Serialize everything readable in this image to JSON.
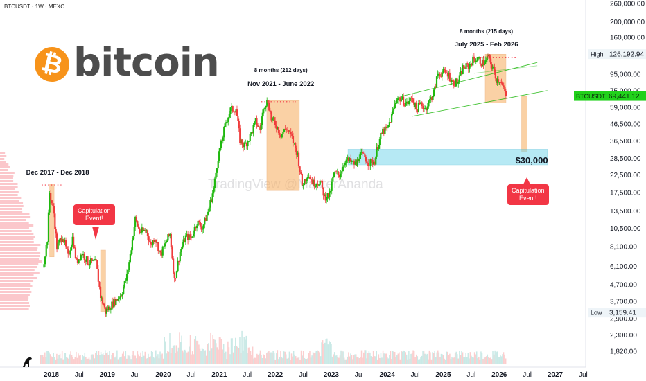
{
  "header": {
    "symbol_line": "BTCUSDT · 1W · MEXC"
  },
  "logo": {
    "symbol": "₿",
    "word": "bitcoin"
  },
  "watermark": "TradingView @MasterAnanda",
  "colors": {
    "up": "#26a69a",
    "up_bright": "#1fb80e",
    "down": "#ef3b3b",
    "zone": "#f7b36b",
    "support": "#6fd4ea",
    "label_red": "#f23645",
    "price_tag": "#21d11b"
  },
  "annotations": {
    "cycle1_title": "Dec 2017 - Dec 2018",
    "cycle2_duration": "8 months (212 days)",
    "cycle2_title": "Nov 2021 - June 2022",
    "cycle3_duration": "8 months (215 days)",
    "cycle3_title": "July 2025 - Feb 2026",
    "capitulation_1": [
      "Capitulation",
      "Event!"
    ],
    "capitulation_2": [
      "Capitulation",
      "Event!"
    ],
    "target_label": "$30,000"
  },
  "price_tags": {
    "high_label": "High",
    "high_value": "126,192.94",
    "current_label": "BTCUSDT",
    "current_value": "69,441.12",
    "low_label": "Low",
    "low_value": "3,159.41"
  },
  "chart_data": {
    "type": "candlestick",
    "scale": "log",
    "y_ticks": [
      "260,000.00",
      "200,000.00",
      "160,000.00",
      "126,192.94",
      "95,000.00",
      "75,000.00",
      "59,000.00",
      "46,500.00",
      "36,500.00",
      "28,500.00",
      "22,500.00",
      "17,500.00",
      "13,500.00",
      "10,500.00",
      "8,100.00",
      "6,100.00",
      "4,700.00",
      "3,700.00",
      "2,900.00",
      "2,300.00",
      "1,820.00"
    ],
    "y_tick_values": [
      260000,
      200000,
      160000,
      126192.94,
      95000,
      75000,
      59000,
      46500,
      36500,
      28500,
      22500,
      17500,
      13500,
      10500,
      8100,
      6100,
      4700,
      3700,
      2900,
      2300,
      1820
    ],
    "x_ticks": [
      "2018",
      "Jul",
      "2019",
      "Jul",
      "2020",
      "Jul",
      "2021",
      "Jul",
      "2022",
      "Jul",
      "2023",
      "Jul",
      "2024",
      "Jul",
      "2025",
      "Jul",
      "2026",
      "Jul",
      "2027",
      "Jul"
    ],
    "x_tick_dates": [
      2018.0,
      2018.5,
      2019.0,
      2019.5,
      2020.0,
      2020.5,
      2021.0,
      2021.5,
      2022.0,
      2022.5,
      2023.0,
      2023.5,
      2024.0,
      2024.5,
      2025.0,
      2025.5,
      2026.0,
      2026.5,
      2027.0,
      2027.5
    ],
    "price_path": [
      [
        2017.85,
        6000
      ],
      [
        2017.93,
        9000
      ],
      [
        2017.97,
        17500
      ],
      [
        2018.05,
        13000
      ],
      [
        2018.1,
        8000
      ],
      [
        2018.2,
        9500
      ],
      [
        2018.3,
        7000
      ],
      [
        2018.38,
        9200
      ],
      [
        2018.45,
        6500
      ],
      [
        2018.55,
        7400
      ],
      [
        2018.65,
        6500
      ],
      [
        2018.8,
        6400
      ],
      [
        2018.88,
        4000
      ],
      [
        2018.97,
        3200
      ],
      [
        2019.1,
        3600
      ],
      [
        2019.25,
        4100
      ],
      [
        2019.35,
        5300
      ],
      [
        2019.43,
        8000
      ],
      [
        2019.5,
        12000
      ],
      [
        2019.58,
        10000
      ],
      [
        2019.7,
        10200
      ],
      [
        2019.78,
        8200
      ],
      [
        2019.85,
        9300
      ],
      [
        2019.95,
        7200
      ],
      [
        2020.05,
        8600
      ],
      [
        2020.12,
        9700
      ],
      [
        2020.2,
        5000
      ],
      [
        2020.3,
        7500
      ],
      [
        2020.4,
        9300
      ],
      [
        2020.5,
        9200
      ],
      [
        2020.6,
        11500
      ],
      [
        2020.7,
        10600
      ],
      [
        2020.8,
        13300
      ],
      [
        2020.9,
        18500
      ],
      [
        2020.98,
        29000
      ],
      [
        2021.05,
        37000
      ],
      [
        2021.12,
        48000
      ],
      [
        2021.2,
        57000
      ],
      [
        2021.3,
        58000
      ],
      [
        2021.37,
        37000
      ],
      [
        2021.45,
        34000
      ],
      [
        2021.55,
        39000
      ],
      [
        2021.65,
        48000
      ],
      [
        2021.73,
        43000
      ],
      [
        2021.8,
        61000
      ],
      [
        2021.87,
        65000
      ],
      [
        2021.93,
        50000
      ],
      [
        2022.0,
        47000
      ],
      [
        2022.1,
        40000
      ],
      [
        2022.2,
        44000
      ],
      [
        2022.3,
        38000
      ],
      [
        2022.4,
        30000
      ],
      [
        2022.48,
        19500
      ],
      [
        2022.58,
        23000
      ],
      [
        2022.68,
        20000
      ],
      [
        2022.8,
        20500
      ],
      [
        2022.88,
        16500
      ],
      [
        2022.97,
        16800
      ],
      [
        2023.05,
        23000
      ],
      [
        2023.15,
        22500
      ],
      [
        2023.25,
        28000
      ],
      [
        2023.35,
        27000
      ],
      [
        2023.45,
        26000
      ],
      [
        2023.5,
        30000
      ],
      [
        2023.6,
        29000
      ],
      [
        2023.68,
        26500
      ],
      [
        2023.78,
        27500
      ],
      [
        2023.83,
        34500
      ],
      [
        2023.92,
        42000
      ],
      [
        2024.0,
        43000
      ],
      [
        2024.08,
        52000
      ],
      [
        2024.17,
        68000
      ],
      [
        2024.25,
        66000
      ],
      [
        2024.35,
        62000
      ],
      [
        2024.45,
        68000
      ],
      [
        2024.52,
        57000
      ],
      [
        2024.6,
        62000
      ],
      [
        2024.68,
        58000
      ],
      [
        2024.78,
        67000
      ],
      [
        2024.85,
        76000
      ],
      [
        2024.9,
        95000
      ],
      [
        2025.0,
        97000
      ],
      [
        2025.08,
        96000
      ],
      [
        2025.17,
        84000
      ],
      [
        2025.27,
        85000
      ],
      [
        2025.35,
        104000
      ],
      [
        2025.45,
        106000
      ],
      [
        2025.55,
        118000
      ],
      [
        2025.62,
        117000
      ],
      [
        2025.7,
        111000
      ],
      [
        2025.77,
        114000
      ],
      [
        2025.8,
        124000
      ],
      [
        2025.85,
        110000
      ],
      [
        2025.9,
        101000
      ],
      [
        2025.95,
        88000
      ],
      [
        2026.02,
        87000
      ],
      [
        2026.08,
        76000
      ],
      [
        2026.12,
        69441
      ]
    ],
    "series": [
      {
        "name": "BTCUSDT",
        "values": "price_path"
      }
    ],
    "high": 126192.94,
    "current": 69441.12,
    "low": 3159.41,
    "cycles": [
      {
        "label": "Dec 2017 - Dec 2018",
        "from": 2017.97,
        "to": 2018.95
      },
      {
        "label": "Nov 2021 - June 2022",
        "from": 2021.85,
        "to": 2022.43
      },
      {
        "label": "July 2025 - Feb 2026",
        "from": 2025.8,
        "to": 2026.15
      }
    ],
    "support_zone": {
      "label": "$30,000",
      "low": 26000,
      "high": 32500
    }
  }
}
